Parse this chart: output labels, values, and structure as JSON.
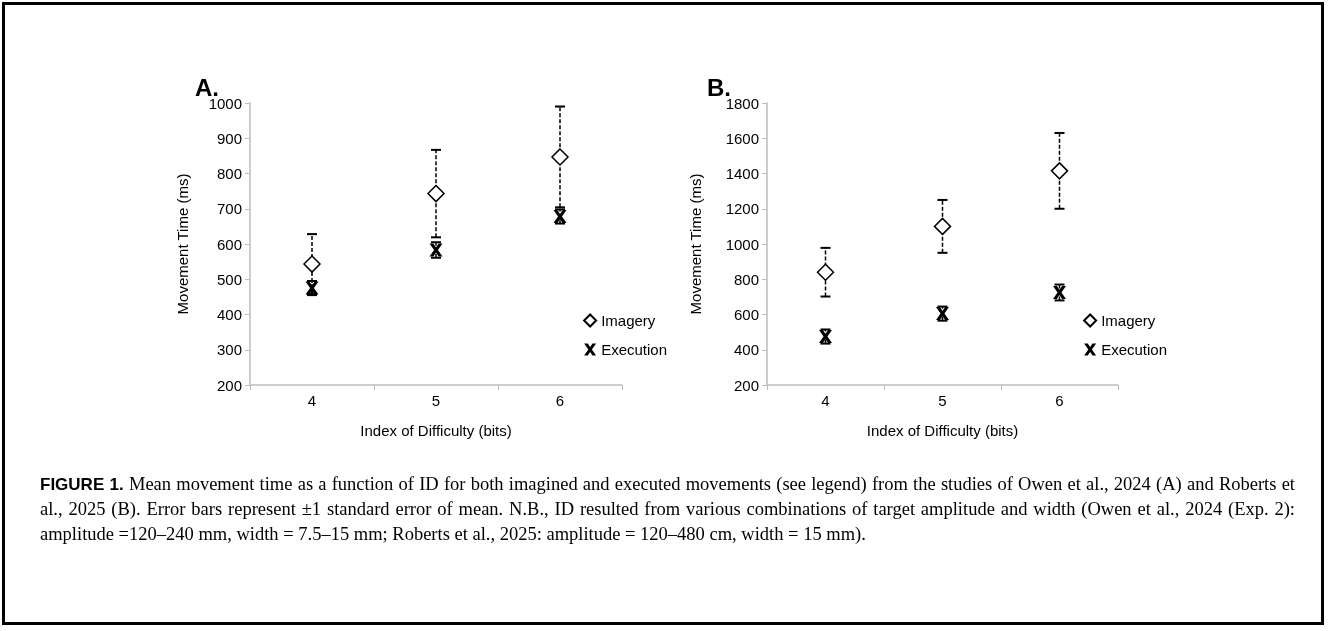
{
  "chart_data": [
    {
      "type": "scatter",
      "title": "A.",
      "xlabel": "Index of Difficulty (bits)",
      "ylabel": "Movement Time (ms)",
      "categories": [
        "4",
        "5",
        "6"
      ],
      "ylim": [
        200,
        1000
      ],
      "yticks": [
        200,
        300,
        400,
        500,
        600,
        700,
        800,
        900,
        1000
      ],
      "grid": false,
      "legend": "bottom right",
      "series": [
        {
          "name": "Imagery",
          "color": "#000000",
          "marker": "diamond",
          "values": [
            543,
            743,
            847
          ],
          "errors": [
            85,
            124,
            143
          ]
        },
        {
          "name": "Execution",
          "color": "#000000",
          "marker": "cross",
          "values": [
            475,
            583,
            678
          ],
          "errors": [
            20,
            22,
            20
          ]
        }
      ]
    },
    {
      "type": "scatter",
      "title": "B.",
      "xlabel": "Index of Difficulty (bits)",
      "ylabel": "Movement Time (ms)",
      "categories": [
        "4",
        "5",
        "6"
      ],
      "ylim": [
        200,
        1800
      ],
      "yticks": [
        200,
        400,
        600,
        800,
        1000,
        1200,
        1400,
        1600,
        1800
      ],
      "grid": false,
      "legend": "bottom right",
      "series": [
        {
          "name": "Imagery",
          "color": "#000000",
          "marker": "diamond",
          "values": [
            840,
            1100,
            1415
          ],
          "errors": [
            138,
            150,
            215
          ]
        },
        {
          "name": "Execution",
          "color": "#000000",
          "marker": "cross",
          "values": [
            475,
            605,
            725
          ],
          "errors": [
            40,
            40,
            45
          ]
        }
      ]
    },
    {
      "type": "other",
      "annotations": [
        "FIGURE 1.",
        "Mean movement time as a function of ID for both imagined and executed movements (see legend) from the studies of Owen et al., 2024 (A) and Roberts et al., 2025 (B). Error bars represent ±1 standard error of mean. N.B., ID resulted from various combinations of target amplitude and width (Owen et al., 2024 (Exp. 2): amplitude =120–240 mm, width = 7.5–15 mm; Roberts et al., 2025: amplitude = 120–480 cm, width = 15 mm)."
      ]
    }
  ]
}
